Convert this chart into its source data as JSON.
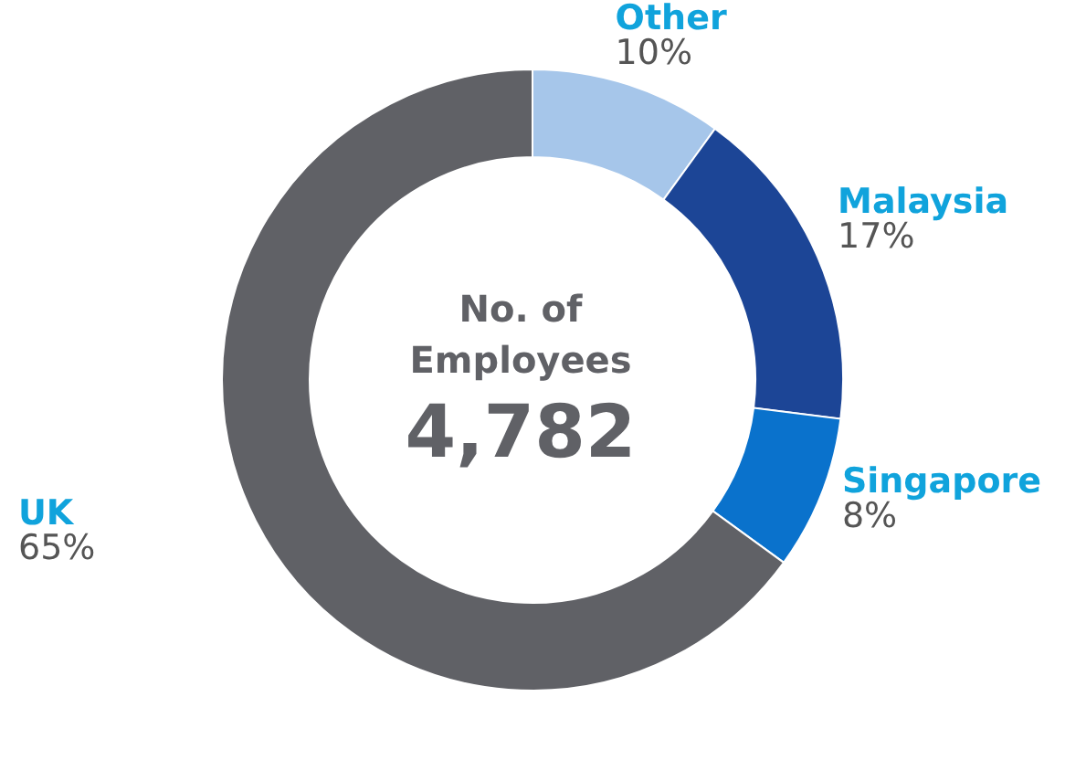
{
  "chart_data": {
    "type": "donut",
    "title": "No. of Employees",
    "annotations": [
      "4,782"
    ],
    "categories": [
      "Other",
      "Malaysia",
      "Singapore",
      "UK"
    ],
    "values": [
      10,
      17,
      8,
      65
    ],
    "colors": [
      "#a6c6ea",
      "#1c4596",
      "#0a72cc",
      "#606166"
    ],
    "value_labels": [
      "10%",
      "17%",
      "8%",
      "65%"
    ]
  }
}
